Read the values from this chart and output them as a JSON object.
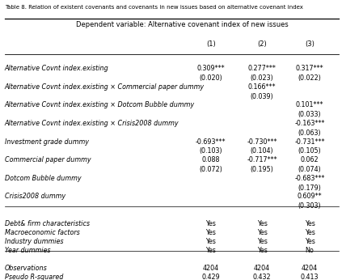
{
  "title_top": "Table 8. Relation of existent covenants and covenants in new issues based on alternative covenant index",
  "header_main": "Dependent variable: Alternative covenant index of new issues",
  "col_headers": [
    "(1)",
    "(2)",
    "(3)"
  ],
  "rows": [
    {
      "label": "Alternative Covnt index.existing",
      "values": [
        "0.309***",
        "0.277***",
        "0.317***"
      ],
      "se": [
        "(0.020)",
        "(0.023)",
        "(0.022)"
      ]
    },
    {
      "label": "Alternative Covnt index.existing × Commercial paper dummy",
      "values": [
        "",
        "0.166***",
        ""
      ],
      "se": [
        "",
        "(0.039)",
        ""
      ]
    },
    {
      "label": "Alternative Covnt index.existing × Dotcom Bubble dummy",
      "values": [
        "",
        "",
        "0.101***"
      ],
      "se": [
        "",
        "",
        "(0.033)"
      ]
    },
    {
      "label": "Alternative Covnt index.existing × Crisis2008 dummy",
      "values": [
        "",
        "",
        "-0.163***"
      ],
      "se": [
        "",
        "",
        "(0.063)"
      ]
    },
    {
      "label": "Investment grade dummy",
      "values": [
        "-0.693***",
        "-0.730***",
        "-0.731***"
      ],
      "se": [
        "(0.103)",
        "(0.104)",
        "(0.105)"
      ]
    },
    {
      "label": "Commercial paper dummy",
      "values": [
        "0.088",
        "-0.717***",
        "0.062"
      ],
      "se": [
        "(0.072)",
        "(0.195)",
        "(0.074)"
      ]
    },
    {
      "label": "Dotcom Bubble dummy",
      "values": [
        "",
        "",
        "-0.683***"
      ],
      "se": [
        "",
        "",
        "(0.179)"
      ]
    },
    {
      "label": "Crisis2008 dummy",
      "values": [
        "",
        "",
        "0.609**"
      ],
      "se": [
        "",
        "",
        "(0.303)"
      ]
    },
    {
      "label": "Debt& firm characteristics",
      "values": [
        "Yes",
        "Yes",
        "Yes"
      ],
      "se": [
        "",
        "",
        ""
      ]
    },
    {
      "label": "Macroeconomic factors",
      "values": [
        "Yes",
        "Yes",
        "Yes"
      ],
      "se": [
        "",
        "",
        ""
      ]
    },
    {
      "label": "Industry dummies",
      "values": [
        "Yes",
        "Yes",
        "Yes"
      ],
      "se": [
        "",
        "",
        ""
      ]
    },
    {
      "label": "Year dummies",
      "values": [
        "Yes",
        "Yes",
        "No"
      ],
      "se": [
        "",
        "",
        ""
      ]
    },
    {
      "label": "Observations",
      "values": [
        "4204",
        "4204",
        "4204"
      ],
      "se": [
        "",
        "",
        ""
      ]
    },
    {
      "label": "Pseudo R-squared",
      "values": [
        "0.429",
        "0.432",
        "0.413"
      ],
      "se": [
        "",
        "",
        ""
      ]
    }
  ],
  "separator_after": [
    7,
    11
  ],
  "blank_before": [
    8,
    12
  ],
  "figsize": [
    4.49,
    3.46
  ],
  "dpi": 100
}
